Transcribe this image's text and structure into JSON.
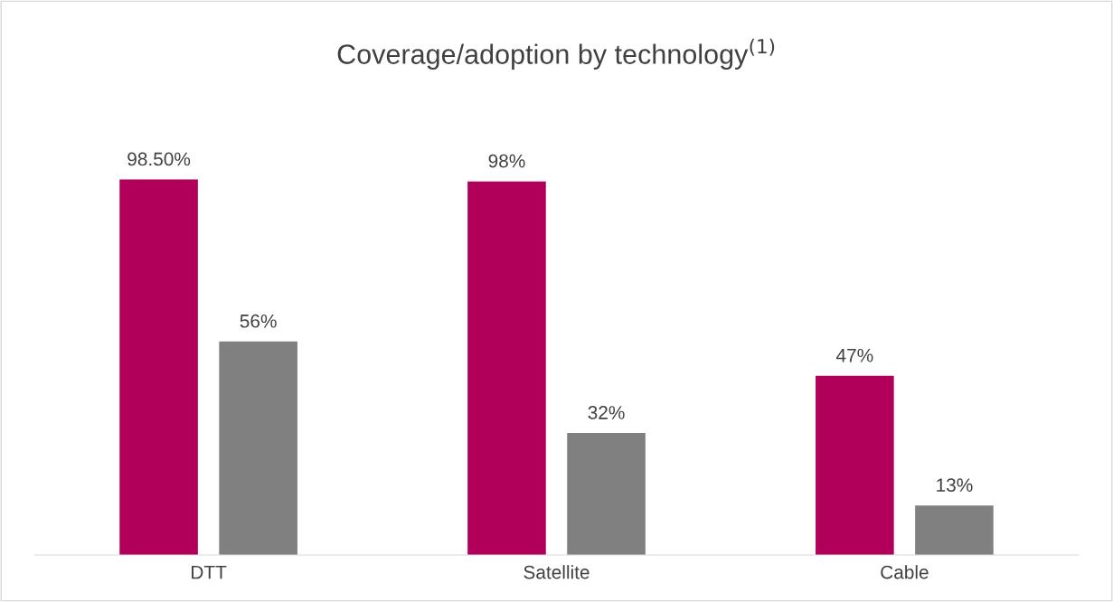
{
  "chart_data": {
    "type": "bar",
    "title": "Coverage/adoption by technology$^{(1)}$",
    "categories": [
      "DTT",
      "Satellite",
      "Cable"
    ],
    "series": [
      {
        "color": "#b0005a",
        "values": [
          98.5,
          98,
          47
        ],
        "value_labels": [
          "98.50%",
          "98%",
          "47%"
        ]
      },
      {
        "color": "#808080",
        "values": [
          56,
          32,
          13
        ],
        "value_labels": [
          "56%",
          "32%",
          "13%"
        ]
      }
    ],
    "grid": false,
    "legend": false
  }
}
